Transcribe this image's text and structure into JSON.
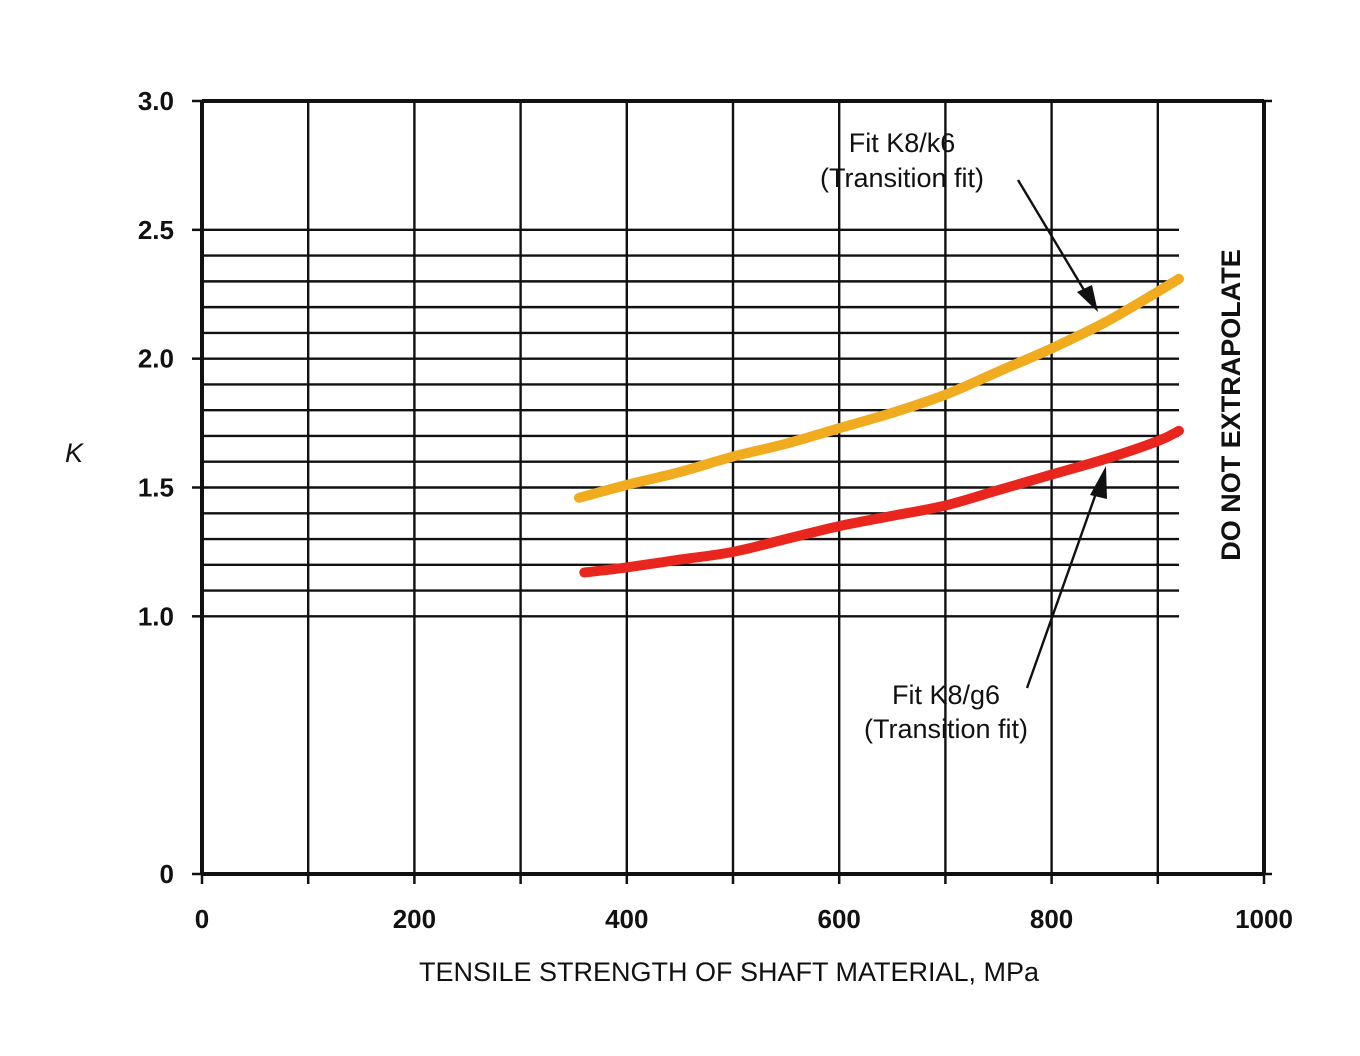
{
  "chart_data": {
    "type": "line",
    "title": "",
    "xlabel": "TENSILE STRENGTH OF SHAFT MATERIAL, MPa",
    "ylabel": "K",
    "xlim": [
      0,
      1000
    ],
    "ylim": [
      0,
      3.0
    ],
    "x_ticks": [
      0,
      200,
      400,
      600,
      800,
      1000
    ],
    "x_tick_labels": [
      "0",
      "200",
      "400",
      "600",
      "800",
      "1000"
    ],
    "y_ticks": [
      0,
      1.0,
      1.5,
      2.0,
      2.5,
      3.0
    ],
    "y_tick_labels": [
      "0",
      "1.0",
      "1.5",
      "2.0",
      "2.5",
      "3.0"
    ],
    "grid": true,
    "vertical_grid_step": 100,
    "fine_grid_range": [
      1.0,
      2.5
    ],
    "fine_grid_step": 0.1,
    "fine_grid_xmax": 920,
    "series": [
      {
        "color": "#F0AC1E",
        "x": [
          355,
          400,
          450,
          500,
          550,
          600,
          650,
          700,
          750,
          800,
          850,
          900,
          920
        ],
        "y": [
          1.46,
          1.51,
          1.56,
          1.62,
          1.67,
          1.73,
          1.79,
          1.86,
          1.95,
          2.04,
          2.14,
          2.26,
          2.31
        ]
      },
      {
        "color": "#E8261E",
        "x": [
          360,
          400,
          450,
          500,
          550,
          600,
          650,
          700,
          750,
          800,
          850,
          900,
          920
        ],
        "y": [
          1.17,
          1.19,
          1.22,
          1.25,
          1.3,
          1.35,
          1.39,
          1.43,
          1.49,
          1.55,
          1.61,
          1.68,
          1.72
        ]
      }
    ],
    "annotations": [
      {
        "lines": [
          "Fit K8/k6",
          "(Transition fit)"
        ]
      },
      {
        "lines": [
          "Fit K8/g6",
          "(Transition fit)"
        ]
      }
    ],
    "side_note": "DO NOT EXTRAPOLATE"
  }
}
